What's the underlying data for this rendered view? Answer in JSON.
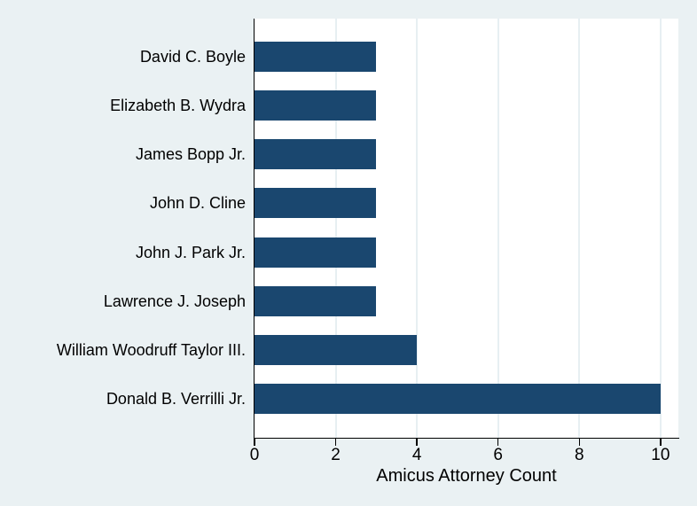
{
  "chart_data": {
    "type": "bar",
    "orientation": "horizontal",
    "xlabel": "Amicus Attorney Count",
    "categories": [
      "David C. Boyle",
      "Elizabeth B. Wydra",
      "James Bopp Jr.",
      "John D. Cline",
      "John J. Park Jr.",
      "Lawrence J. Joseph",
      "William Woodruff Taylor III.",
      "Donald B. Verrilli Jr."
    ],
    "values": [
      3,
      3,
      3,
      3,
      3,
      3,
      4,
      10
    ],
    "xticks": [
      0,
      2,
      4,
      6,
      8,
      10
    ],
    "xlim": [
      0,
      10.44
    ],
    "grid": true,
    "legend": "none",
    "colors": {
      "bar": "#1a476f",
      "background": "#eaf1f3",
      "plot_background": "#ffffff",
      "gridline": "#e7eff2",
      "axis": "#000000",
      "text": "#000000"
    }
  }
}
